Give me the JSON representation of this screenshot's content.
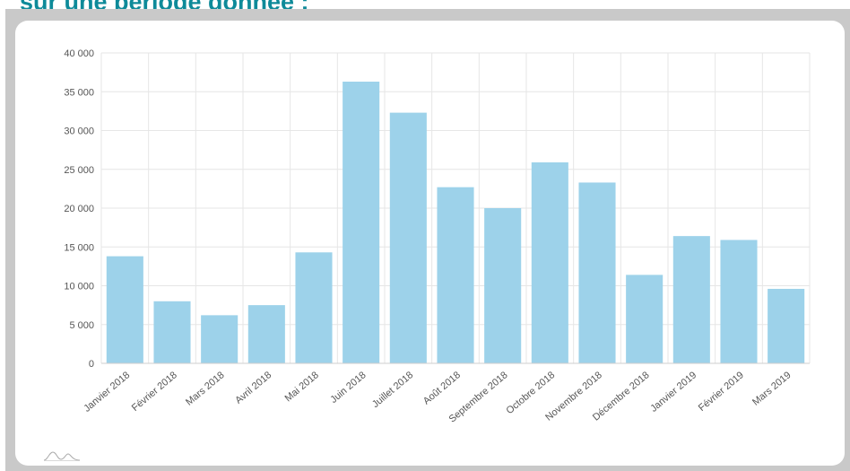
{
  "page": {
    "heading": "sur une période donnée :"
  },
  "colors": {
    "bar": "#9dd2ea",
    "grid": "#e6e6e6",
    "heading": "#0e8a99",
    "frame": "#c9c9c9"
  },
  "logo": {
    "icon": "wave-logo-icon"
  },
  "chart_data": {
    "type": "bar",
    "categories": [
      "Janvier 2018",
      "Février 2018",
      "Mars 2018",
      "Avril 2018",
      "Mai 2018",
      "Juin 2018",
      "Juillet 2018",
      "Août 2018",
      "Septembre 2018",
      "Octobre 2018",
      "Novembre 2018",
      "Décembre 2018",
      "Janvier 2019",
      "Février 2019",
      "Mars 2019"
    ],
    "values": [
      13800,
      8000,
      6200,
      7500,
      14300,
      36300,
      32300,
      22700,
      20000,
      25900,
      23300,
      11400,
      16400,
      15900,
      9600
    ],
    "title": "",
    "xlabel": "",
    "ylabel": "",
    "ylim": [
      0,
      40000
    ],
    "yticks": [
      0,
      5000,
      10000,
      15000,
      20000,
      25000,
      30000,
      35000,
      40000
    ],
    "ytick_labels": [
      "0",
      "5 000",
      "10 000",
      "15 000",
      "20 000",
      "25 000",
      "30 000",
      "35 000",
      "40 000"
    ],
    "grid": true,
    "legend": "none"
  }
}
